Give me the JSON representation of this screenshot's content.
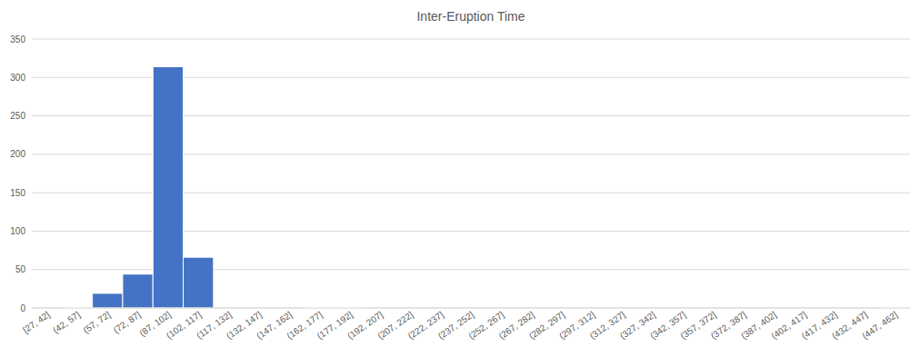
{
  "chart_data": {
    "type": "histogram",
    "title": "Inter-Eruption Time",
    "bins": [
      27,
      42,
      57,
      72,
      87,
      102,
      117,
      132,
      147,
      162,
      177,
      192,
      207,
      222,
      237,
      252,
      267,
      282,
      297,
      312,
      327,
      342,
      357,
      372,
      387,
      402,
      417,
      432,
      447,
      462
    ],
    "categories": [
      "[27, 42]",
      "(42, 57]",
      "(57, 72]",
      "(72, 87]",
      "(87, 102]",
      "(102, 117]",
      "(117, 132]",
      "(132, 147]",
      "(147, 162]",
      "(162, 177]",
      "(177, 192]",
      "(192, 207]",
      "(207, 222]",
      "(222, 237]",
      "(237, 252]",
      "(252, 267]",
      "(267, 282]",
      "(282, 297]",
      "(297, 312]",
      "(312, 327]",
      "(327, 342]",
      "(342, 357]",
      "(357, 372]",
      "(372, 387]",
      "(387, 402]",
      "(402, 417]",
      "(417, 432]",
      "(432, 447]",
      "(447, 462]"
    ],
    "values": [
      0,
      1,
      19,
      44,
      314,
      66,
      0,
      0,
      0,
      1,
      1,
      0,
      0,
      0,
      0,
      0,
      0,
      0,
      0,
      0,
      0,
      0,
      0,
      0,
      0,
      0,
      0,
      0,
      1
    ],
    "color": "#4472c4",
    "ylim": [
      0,
      350
    ],
    "yticks": [
      0,
      50,
      100,
      150,
      200,
      250,
      300,
      350
    ],
    "grid": true
  }
}
